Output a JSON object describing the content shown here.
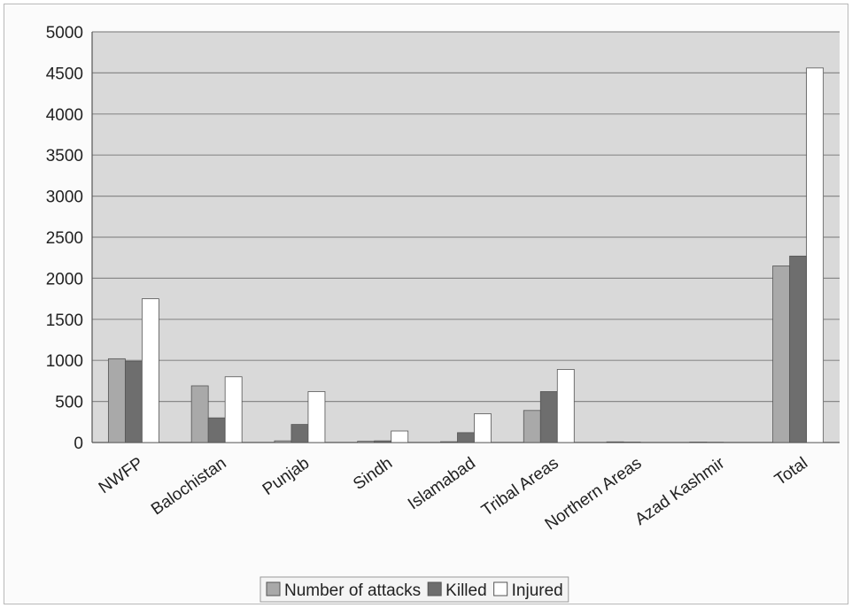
{
  "chart_data": {
    "type": "bar",
    "title": "",
    "xlabel": "",
    "ylabel": "",
    "categories": [
      "NWFP",
      "Balochistan",
      "Punjab",
      "Sindh",
      "Islamabad",
      "Tribal Areas",
      "Northern Areas",
      "Azad Kashmir",
      "Total"
    ],
    "series": [
      {
        "name": "Number of attacks",
        "values": [
          1020,
          690,
          20,
          15,
          10,
          390,
          8,
          5,
          2150
        ]
      },
      {
        "name": "Killed",
        "values": [
          990,
          300,
          220,
          20,
          120,
          620,
          5,
          3,
          2270
        ]
      },
      {
        "name": "Injured",
        "values": [
          1750,
          800,
          620,
          140,
          350,
          890,
          0,
          0,
          4560
        ]
      }
    ],
    "ylim": [
      0,
      5000
    ],
    "yticks": [
      0,
      500,
      1000,
      1500,
      2000,
      2500,
      3000,
      3500,
      4000,
      4500,
      5000
    ],
    "grid": true,
    "legend_position": "bottom",
    "colors": {
      "Number of attacks": "#a9a9a9",
      "Killed": "#6e6e6e",
      "Injured": "#ffffff",
      "plot_background": "#d9d9d9",
      "gridline": "#8a8a8a"
    }
  }
}
